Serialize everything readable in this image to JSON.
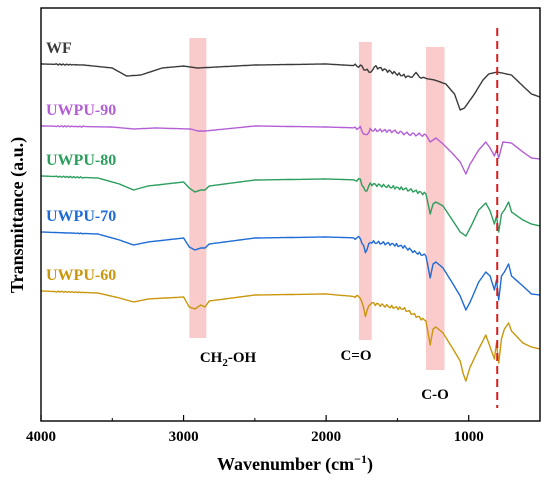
{
  "chart_data": {
    "type": "line",
    "title": "",
    "xlabel": "Wavenumber (cm",
    "xlabel_sup": "−1",
    "xlabel_close": ")",
    "ylabel": "Transmittance (a.u.)",
    "xlim": [
      4000,
      500
    ],
    "x_reversed": true,
    "x_ticks": [
      "4000",
      "3000",
      "2000",
      "1000"
    ],
    "x_tick_values": [
      4000,
      3000,
      2000,
      1000
    ],
    "y_ticks": "none",
    "grid": false,
    "legend": "inline labels at left",
    "series": [
      {
        "name": "WF",
        "color": "#3a3a3a",
        "offset": 0,
        "points": [
          [
            4000,
            0
          ],
          [
            3700,
            -1
          ],
          [
            3500,
            -4
          ],
          [
            3400,
            -12
          ],
          [
            3300,
            -11
          ],
          [
            3150,
            -4
          ],
          [
            3000,
            -2
          ],
          [
            2900,
            -4
          ],
          [
            2500,
            -1
          ],
          [
            2000,
            0
          ],
          [
            1760,
            -2
          ],
          [
            1700,
            -8
          ],
          [
            1650,
            -3
          ],
          [
            1500,
            -10
          ],
          [
            1420,
            -13
          ],
          [
            1370,
            -10
          ],
          [
            1320,
            -14
          ],
          [
            1240,
            -16
          ],
          [
            1160,
            -20
          ],
          [
            1100,
            -30
          ],
          [
            1060,
            -46
          ],
          [
            1030,
            -44
          ],
          [
            960,
            -30
          ],
          [
            900,
            -16
          ],
          [
            860,
            -10
          ],
          [
            800,
            -8
          ],
          [
            700,
            -11
          ],
          [
            620,
            -22
          ],
          [
            560,
            -30
          ],
          [
            500,
            -33
          ]
        ]
      },
      {
        "name": "UWPU-90",
        "color": "#b45ed6",
        "offset": 62,
        "points": [
          [
            4000,
            0
          ],
          [
            3500,
            -1
          ],
          [
            3350,
            -3
          ],
          [
            3200,
            -2
          ],
          [
            2950,
            -3
          ],
          [
            2900,
            -5
          ],
          [
            2850,
            -5
          ],
          [
            2500,
            0
          ],
          [
            2000,
            -1
          ],
          [
            1760,
            -2
          ],
          [
            1725,
            -10
          ],
          [
            1690,
            -4
          ],
          [
            1540,
            -5
          ],
          [
            1420,
            -8
          ],
          [
            1300,
            -9
          ],
          [
            1270,
            -16
          ],
          [
            1250,
            -14
          ],
          [
            1230,
            -12
          ],
          [
            1180,
            -18
          ],
          [
            1110,
            -28
          ],
          [
            1060,
            -36
          ],
          [
            1020,
            -48
          ],
          [
            990,
            -38
          ],
          [
            930,
            -24
          ],
          [
            880,
            -16
          ],
          [
            850,
            -22
          ],
          [
            820,
            -30
          ],
          [
            805,
            -24
          ],
          [
            790,
            -32
          ],
          [
            760,
            -16
          ],
          [
            700,
            -17
          ],
          [
            620,
            -26
          ],
          [
            560,
            -32
          ],
          [
            500,
            -33
          ]
        ]
      },
      {
        "name": "UWPU-80",
        "color": "#2b9e5d",
        "offset": 112,
        "points": [
          [
            4000,
            0
          ],
          [
            3600,
            -2
          ],
          [
            3450,
            -8
          ],
          [
            3350,
            -14
          ],
          [
            3250,
            -10
          ],
          [
            3000,
            -6
          ],
          [
            2960,
            -12
          ],
          [
            2920,
            -16
          ],
          [
            2880,
            -14
          ],
          [
            2850,
            -14
          ],
          [
            2820,
            -10
          ],
          [
            2500,
            -4
          ],
          [
            2000,
            -3
          ],
          [
            1760,
            -4
          ],
          [
            1725,
            -16
          ],
          [
            1690,
            -8
          ],
          [
            1540,
            -11
          ],
          [
            1450,
            -13
          ],
          [
            1380,
            -15
          ],
          [
            1300,
            -18
          ],
          [
            1270,
            -38
          ],
          [
            1250,
            -28
          ],
          [
            1230,
            -26
          ],
          [
            1180,
            -30
          ],
          [
            1110,
            -45
          ],
          [
            1060,
            -56
          ],
          [
            1020,
            -60
          ],
          [
            990,
            -52
          ],
          [
            930,
            -34
          ],
          [
            880,
            -27
          ],
          [
            850,
            -35
          ],
          [
            820,
            -48
          ],
          [
            805,
            -40
          ],
          [
            790,
            -56
          ],
          [
            770,
            -38
          ],
          [
            750,
            -34
          ],
          [
            720,
            -26
          ],
          [
            700,
            -36
          ],
          [
            620,
            -44
          ],
          [
            560,
            -48
          ],
          [
            500,
            -50
          ]
        ]
      },
      {
        "name": "UWPU-70",
        "color": "#1e6bd6",
        "offset": 168,
        "points": [
          [
            4000,
            0
          ],
          [
            3600,
            -2
          ],
          [
            3450,
            -8
          ],
          [
            3350,
            -13
          ],
          [
            3250,
            -10
          ],
          [
            3000,
            -6
          ],
          [
            2960,
            -15
          ],
          [
            2920,
            -18
          ],
          [
            2880,
            -16
          ],
          [
            2850,
            -16
          ],
          [
            2820,
            -12
          ],
          [
            2500,
            -6
          ],
          [
            2000,
            -5
          ],
          [
            1760,
            -6
          ],
          [
            1725,
            -20
          ],
          [
            1690,
            -10
          ],
          [
            1540,
            -12
          ],
          [
            1450,
            -15
          ],
          [
            1380,
            -20
          ],
          [
            1300,
            -24
          ],
          [
            1270,
            -46
          ],
          [
            1250,
            -32
          ],
          [
            1230,
            -30
          ],
          [
            1180,
            -36
          ],
          [
            1110,
            -52
          ],
          [
            1060,
            -64
          ],
          [
            1020,
            -78
          ],
          [
            990,
            -70
          ],
          [
            930,
            -50
          ],
          [
            880,
            -40
          ],
          [
            850,
            -44
          ],
          [
            820,
            -58
          ],
          [
            805,
            -48
          ],
          [
            790,
            -68
          ],
          [
            770,
            -44
          ],
          [
            750,
            -40
          ],
          [
            720,
            -32
          ],
          [
            700,
            -44
          ],
          [
            620,
            -54
          ],
          [
            560,
            -62
          ],
          [
            500,
            -63
          ]
        ]
      },
      {
        "name": "UWPU-60",
        "color": "#c9960c",
        "offset": 227,
        "points": [
          [
            4000,
            0
          ],
          [
            3600,
            -2
          ],
          [
            3450,
            -7
          ],
          [
            3350,
            -11
          ],
          [
            3250,
            -8
          ],
          [
            3000,
            -6
          ],
          [
            2960,
            -16
          ],
          [
            2920,
            -18
          ],
          [
            2880,
            -14
          ],
          [
            2850,
            -16
          ],
          [
            2820,
            -10
          ],
          [
            2500,
            -4
          ],
          [
            2000,
            -3
          ],
          [
            1760,
            -6
          ],
          [
            1725,
            -24
          ],
          [
            1690,
            -12
          ],
          [
            1540,
            -16
          ],
          [
            1450,
            -18
          ],
          [
            1380,
            -24
          ],
          [
            1300,
            -30
          ],
          [
            1270,
            -54
          ],
          [
            1250,
            -38
          ],
          [
            1230,
            -36
          ],
          [
            1180,
            -42
          ],
          [
            1110,
            -58
          ],
          [
            1060,
            -70
          ],
          [
            1040,
            -82
          ],
          [
            1020,
            -90
          ],
          [
            990,
            -76
          ],
          [
            930,
            -58
          ],
          [
            880,
            -44
          ],
          [
            850,
            -56
          ],
          [
            820,
            -68
          ],
          [
            805,
            -52
          ],
          [
            790,
            -72
          ],
          [
            770,
            -48
          ],
          [
            750,
            -38
          ],
          [
            720,
            -32
          ],
          [
            700,
            -40
          ],
          [
            620,
            -52
          ],
          [
            560,
            -56
          ],
          [
            500,
            -58
          ]
        ]
      }
    ],
    "highlight_bands": [
      {
        "x_from": 2960,
        "x_to": 2840,
        "label": "CH",
        "label_sub": "2",
        "label_rest": "-OH",
        "color": "#f4a0a0"
      },
      {
        "x_from": 1770,
        "x_to": 1680,
        "label": "C=O",
        "label_sub": "",
        "label_rest": "",
        "color": "#f4a0a0"
      },
      {
        "x_from": 1300,
        "x_to": 1170,
        "label": "C-O",
        "label_sub": "",
        "label_rest": "",
        "color": "#f4a0a0"
      }
    ],
    "reference_line": {
      "x": 800,
      "style": "dashed",
      "color": "#d61e1e"
    }
  }
}
